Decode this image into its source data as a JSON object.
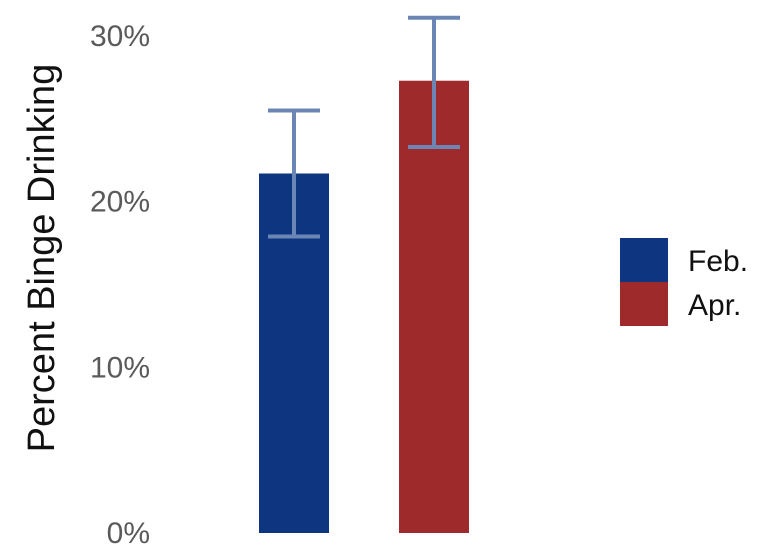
{
  "chart_data": {
    "type": "bar",
    "categories": [
      "Feb.",
      "Apr."
    ],
    "series": [
      {
        "values": [
          21.7,
          27.3
        ],
        "error_low": [
          17.9,
          23.3
        ],
        "error_high": [
          25.5,
          31.1
        ]
      }
    ],
    "title": "",
    "xlabel": "",
    "ylabel": "Percent Binge Drinking",
    "ylim": [
      0,
      30
    ],
    "yticks": [
      0,
      10,
      20,
      30
    ],
    "ytick_labels": [
      "0%",
      "10%",
      "20%",
      "30%"
    ],
    "legend": {
      "position": "right",
      "entries": [
        "Feb.",
        "Apr."
      ]
    },
    "grid": false,
    "colors": {
      "bars": [
        "#0e3580",
        "#9e2a2b"
      ],
      "error_bars": "#6b86b4"
    }
  }
}
